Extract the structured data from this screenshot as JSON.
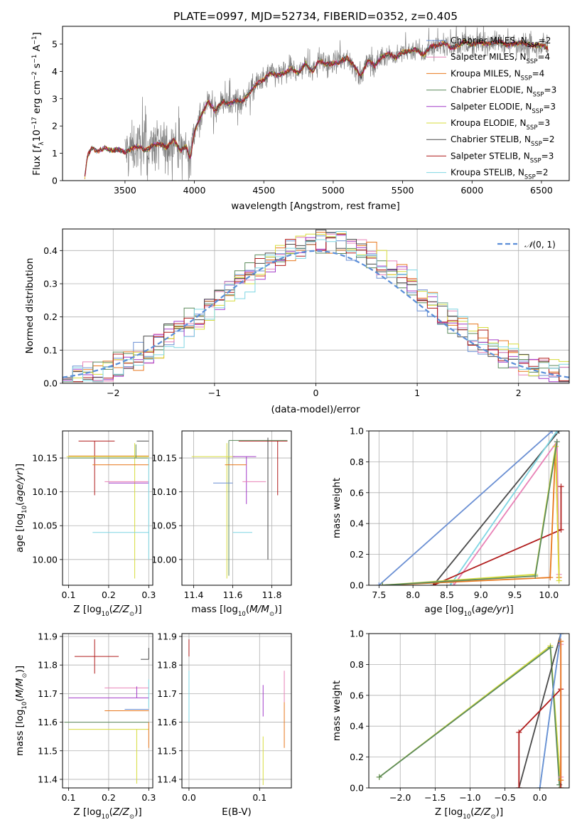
{
  "chart_data": [
    {
      "type": "line",
      "title": "PLATE=0997, MJD=52734, FIBERID=0352, z=0.405",
      "xlabel": "wavelength [Angstrom, rest frame]",
      "ylabel": "Flux [f_λ 10^-17 erg cm^-2 s^-1 A^-1]",
      "xlim": [
        3050,
        6700
      ],
      "ylim": [
        0,
        5.65
      ],
      "xticks": [
        3500,
        4000,
        4500,
        5000,
        5500,
        6000,
        6500
      ],
      "yticks": [
        0,
        1,
        2,
        3,
        4,
        5
      ],
      "legend_position": "top-right",
      "data_x": [
        3210,
        3230,
        3260,
        3300,
        3350,
        3400,
        3450,
        3500,
        3560,
        3600,
        3650,
        3700,
        3750,
        3800,
        3850,
        3900,
        3940,
        3970,
        4000,
        4050,
        4100,
        4150,
        4200,
        4250,
        4300,
        4350,
        4400,
        4450,
        4500,
        4550,
        4600,
        4650,
        4700,
        4750,
        4800,
        4850,
        4900,
        4950,
        5000,
        5050,
        5100,
        5150,
        5200,
        5250,
        5300,
        5350,
        5400,
        5450,
        5500,
        5550,
        5600,
        5650,
        5700,
        5750,
        5800,
        5850,
        5900,
        5950,
        6000,
        6050,
        6100,
        6150,
        6200,
        6250,
        6300,
        6350,
        6400,
        6450,
        6500,
        6550
      ],
      "data_y": [
        0.1,
        0.9,
        1.2,
        1.05,
        1.2,
        1.1,
        1.15,
        1.05,
        1.2,
        1.25,
        1.1,
        1.3,
        1.35,
        1.2,
        1.5,
        1.1,
        1.25,
        0.8,
        1.8,
        2.4,
        2.9,
        2.55,
        2.9,
        2.8,
        2.95,
        2.9,
        3.25,
        3.55,
        3.7,
        3.95,
        3.85,
        3.95,
        4.1,
        3.95,
        4.3,
        4.0,
        4.4,
        4.25,
        4.3,
        4.35,
        4.5,
        4.2,
        3.8,
        4.4,
        4.2,
        4.55,
        4.65,
        4.5,
        4.7,
        4.75,
        4.8,
        4.6,
        4.9,
        4.95,
        5.05,
        4.85,
        4.95,
        5.1,
        4.95,
        5.1,
        5.0,
        5.05,
        5.1,
        4.95,
        5.0,
        5.05,
        5.0,
        4.95,
        4.95,
        4.85
      ],
      "noisy_data_from": 3500,
      "series": [
        {
          "label": "Chabrier MILES, N",
          "sub": "SSP",
          "suffix": "=2",
          "color": "#6a8fd3"
        },
        {
          "label": "Salpeter MILES, N",
          "sub": "SSP",
          "suffix": "=4",
          "color": "#e882b7"
        },
        {
          "label": "Kroupa MILES, N",
          "sub": "SSP",
          "suffix": "=4",
          "color": "#e8781e"
        },
        {
          "label": "Chabrier ELODIE, N",
          "sub": "SSP",
          "suffix": "=3",
          "color": "#5c8a5c"
        },
        {
          "label": "Salpeter ELODIE, N",
          "sub": "SSP",
          "suffix": "=3",
          "color": "#a23ac8"
        },
        {
          "label": "Kroupa ELODIE, N",
          "sub": "SSP",
          "suffix": "=3",
          "color": "#d7dc3c"
        },
        {
          "label": "Chabrier STELIB, N",
          "sub": "SSP",
          "suffix": "=2",
          "color": "#4a4a4a"
        },
        {
          "label": "Salpeter STELIB, N",
          "sub": "SSP",
          "suffix": "=3",
          "color": "#b01c1c"
        },
        {
          "label": "Kroupa STELIB, N",
          "sub": "SSP",
          "suffix": "=2",
          "color": "#7fd6e3"
        }
      ]
    },
    {
      "type": "line",
      "xlabel": "(data-model)/error",
      "ylabel": "Normed distribution",
      "xlim": [
        -2.5,
        2.5
      ],
      "ylim": [
        0,
        0.465
      ],
      "xticks": [
        -2,
        -1,
        0,
        1,
        2
      ],
      "yticks": [
        0.0,
        0.1,
        0.2,
        0.3,
        0.4
      ],
      "grid": true,
      "gaussian_label": "N(0,1)",
      "gaussian_color": "#5b8ed8",
      "bin_width": 0.1
    },
    {
      "type": "scatter",
      "xlabel": "Z [log10(Z/Z⊙)]",
      "ylabel": "age  [log10(age/yr)]",
      "xlim": [
        0.085,
        0.31
      ],
      "ylim": [
        9.962,
        10.19
      ],
      "xticks": [
        0.1,
        0.2,
        0.3
      ],
      "yticks": [
        10.0,
        10.05,
        10.1,
        10.15
      ],
      "grid": true,
      "points": [
        {
          "c": 7,
          "x": 0.165,
          "y": 10.175,
          "xe": [
            0.04,
            0.05
          ],
          "ye": [
            0.08,
            0.0
          ]
        },
        {
          "c": 6,
          "x": 0.29,
          "y": 10.175,
          "xe": [
            0.02,
            0.01
          ],
          "ye": [
            0.0,
            0.0
          ]
        },
        {
          "c": 2,
          "x": 0.1,
          "y": 10.153,
          "xe": [
            0.0,
            0.2
          ],
          "ye": [
            0.0,
            0.0
          ]
        },
        {
          "c": 5,
          "x": 0.265,
          "y": 10.152,
          "xe": [
            0.17,
            0.035
          ],
          "ye": [
            0.18,
            0.02
          ]
        },
        {
          "c": 3,
          "x": 0.268,
          "y": 10.15,
          "xe": [
            0.17,
            0.03
          ],
          "ye": [
            0.0,
            0.02
          ]
        },
        {
          "c": 2,
          "x": 0.2,
          "y": 10.14,
          "xe": [
            0.04,
            0.1
          ],
          "ye": [
            0.0,
            0.0
          ]
        },
        {
          "c": 1,
          "x": 0.26,
          "y": 10.115,
          "xe": [
            0.07,
            0.04
          ],
          "ye": [
            0.0,
            0.0
          ]
        },
        {
          "c": 4,
          "x": 0.28,
          "y": 10.113,
          "xe": [
            0.08,
            0.02
          ],
          "ye": [
            0.0,
            0.0
          ]
        },
        {
          "c": 8,
          "x": 0.23,
          "y": 10.04,
          "xe": [
            0.07,
            0.07
          ],
          "ye": [
            0.0,
            0.0
          ]
        },
        {
          "c": 8,
          "x": 0.3,
          "y": 10.1,
          "xe": [
            0.0,
            0.0
          ],
          "ye": [
            0.1,
            0.05
          ]
        }
      ]
    },
    {
      "type": "scatter",
      "xlabel": "mass [log10(M/M⊙)]",
      "ylabel": "",
      "xlim": [
        11.34,
        11.9
      ],
      "ylim": [
        9.962,
        10.19
      ],
      "xticks": [
        11.4,
        11.6,
        11.8
      ],
      "yticks": [
        10.0,
        10.05,
        10.1,
        10.15
      ],
      "grid": true,
      "points": [
        {
          "c": 7,
          "x": 11.83,
          "y": 10.175,
          "xe": [
            0.2,
            0.05
          ],
          "ye": [
            0.08,
            0.0
          ]
        },
        {
          "c": 3,
          "x": 11.58,
          "y": 10.176,
          "xe": [
            0.0,
            0.3
          ],
          "ye": [
            0.2,
            0.0
          ]
        },
        {
          "c": 5,
          "x": 11.57,
          "y": 10.152,
          "xe": [
            0.18,
            0.04
          ],
          "ye": [
            0.18,
            0.02
          ]
        },
        {
          "c": 4,
          "x": 11.67,
          "y": 10.152,
          "xe": [
            0.07,
            0.05
          ],
          "ye": [
            0.07,
            0.0
          ]
        },
        {
          "c": 2,
          "x": 11.62,
          "y": 10.14,
          "xe": [
            0.06,
            0.05
          ],
          "ye": [
            0.0,
            0.0
          ]
        },
        {
          "c": 1,
          "x": 11.72,
          "y": 10.115,
          "xe": [
            0.07,
            0.05
          ],
          "ye": [
            0.0,
            0.0
          ]
        },
        {
          "c": 0,
          "x": 11.6,
          "y": 10.113,
          "xe": [
            0.1,
            0.0
          ],
          "ye": [
            0.0,
            0.0
          ]
        },
        {
          "c": 8,
          "x": 11.7,
          "y": 10.04,
          "xe": [
            0.1,
            0.0
          ],
          "ye": [
            0.0,
            0.0
          ]
        },
        {
          "c": 6,
          "x": 11.78,
          "y": 10.0,
          "xe": [
            0.0,
            0.0
          ],
          "ye": [
            0.0,
            0.18
          ]
        }
      ]
    },
    {
      "type": "line",
      "xlabel": "age  [log10(age/yr)]",
      "ylabel": "mass weight",
      "xlim": [
        7.35,
        10.3
      ],
      "ylim": [
        0,
        1.0
      ],
      "xticks": [
        7.5,
        8.0,
        8.5,
        9.0,
        9.5,
        10.0
      ],
      "yticks": [
        0.0,
        0.2,
        0.4,
        0.6,
        0.8,
        1.0
      ],
      "grid": true,
      "lines": [
        {
          "c": 0,
          "x": [
            7.5,
            10.05
          ],
          "y": [
            0.0,
            1.0
          ]
        },
        {
          "c": 6,
          "x": [
            8.3,
            10.15
          ],
          "y": [
            0.0,
            1.0
          ]
        },
        {
          "c": 8,
          "x": [
            8.55,
            10.12
          ],
          "y": [
            0.0,
            1.0
          ]
        },
        {
          "c": 1,
          "x": [
            8.6,
            10.12,
            10.15
          ],
          "y": [
            0.0,
            0.93,
            0.07
          ]
        },
        {
          "c": 7,
          "x": [
            8.3,
            10.18,
            10.18
          ],
          "y": [
            0.0,
            0.36,
            0.64
          ]
        },
        {
          "c": 2,
          "x": [
            7.55,
            10.02,
            10.1,
            10.15
          ],
          "y": [
            0.0,
            0.05,
            0.9,
            0.05
          ]
        },
        {
          "c": 5,
          "x": [
            7.55,
            9.8,
            10.1,
            10.15
          ],
          "y": [
            0.0,
            0.07,
            0.9,
            0.03
          ]
        },
        {
          "c": 3,
          "x": [
            7.55,
            9.8,
            10.12
          ],
          "y": [
            0.0,
            0.06,
            0.93
          ]
        }
      ]
    },
    {
      "type": "scatter",
      "xlabel": "Z [log10(Z/Z⊙)]",
      "ylabel": "mass [log10(M/M⊙)]",
      "xlim": [
        0.085,
        0.31
      ],
      "ylim": [
        11.37,
        11.91
      ],
      "xticks": [
        0.1,
        0.2,
        0.3
      ],
      "yticks": [
        11.4,
        11.5,
        11.6,
        11.7,
        11.8,
        11.9
      ],
      "grid": true,
      "points": [
        {
          "c": 7,
          "x": 0.165,
          "y": 11.83,
          "xe": [
            0.05,
            0.06
          ],
          "ye": [
            0.06,
            0.06
          ]
        },
        {
          "c": 6,
          "x": 0.3,
          "y": 11.82,
          "xe": [
            0.02,
            0.0
          ],
          "ye": [
            0.0,
            0.04
          ]
        },
        {
          "c": 1,
          "x": 0.24,
          "y": 11.72,
          "xe": [
            0.05,
            0.06
          ],
          "ye": [
            0.0,
            0.0
          ]
        },
        {
          "c": 4,
          "x": 0.27,
          "y": 11.685,
          "xe": [
            0.17,
            0.03
          ],
          "ye": [
            0.0,
            0.04
          ]
        },
        {
          "c": 0,
          "x": 0.27,
          "y": 11.645,
          "xe": [
            0.03,
            0.03
          ],
          "ye": [
            0.0,
            0.0
          ]
        },
        {
          "c": 2,
          "x": 0.26,
          "y": 11.64,
          "xe": [
            0.07,
            0.04
          ],
          "ye": [
            0.0,
            0.0
          ]
        },
        {
          "c": 3,
          "x": 0.24,
          "y": 11.6,
          "xe": [
            0.15,
            0.06
          ],
          "ye": [
            0.0,
            0.0
          ]
        },
        {
          "c": 5,
          "x": 0.27,
          "y": 11.575,
          "xe": [
            0.17,
            0.03
          ],
          "ye": [
            0.19,
            0.0
          ]
        },
        {
          "c": 2,
          "x": 0.3,
          "y": 11.55,
          "xe": [
            0.0,
            0.0
          ],
          "ye": [
            0.04,
            0.05
          ]
        },
        {
          "c": 8,
          "x": 0.3,
          "y": 11.7,
          "xe": [
            0.0,
            0.0
          ],
          "ye": [
            0.05,
            0.05
          ]
        }
      ]
    },
    {
      "type": "scatter",
      "xlabel": "E(B-V)",
      "ylabel": "",
      "xlim": [
        -0.01,
        0.145
      ],
      "ylim": [
        11.37,
        11.91
      ],
      "xticks": [
        0.0,
        0.1
      ],
      "yticks": [
        11.4,
        11.5,
        11.6,
        11.7,
        11.8,
        11.9
      ],
      "grid": true,
      "points": [
        {
          "c": 7,
          "x": 0.0,
          "y": 11.83,
          "xe": [
            0.0,
            0.0
          ],
          "ye": [
            0.0,
            0.06
          ]
        },
        {
          "c": 8,
          "x": 0.0,
          "y": 11.7,
          "xe": [
            0.0,
            0.0
          ],
          "ye": [
            0.1,
            0.08
          ]
        },
        {
          "c": 4,
          "x": 0.105,
          "y": 11.67,
          "xe": [
            0.0,
            0.0
          ],
          "ye": [
            0.05,
            0.06
          ]
        },
        {
          "c": 5,
          "x": 0.105,
          "y": 11.5,
          "xe": [
            0.0,
            0.0
          ],
          "ye": [
            0.12,
            0.05
          ]
        },
        {
          "c": 1,
          "x": 0.135,
          "y": 11.72,
          "xe": [
            0.0,
            0.0
          ],
          "ye": [
            0.05,
            0.06
          ]
        },
        {
          "c": 2,
          "x": 0.135,
          "y": 11.59,
          "xe": [
            0.0,
            0.0
          ],
          "ye": [
            0.08,
            0.08
          ]
        }
      ]
    },
    {
      "type": "line",
      "xlabel": "Z [log10(Z/Z⊙)]",
      "ylabel": "mass weight",
      "xlim": [
        -2.45,
        0.42
      ],
      "ylim": [
        0,
        1.0
      ],
      "xticks": [
        -2.0,
        -1.5,
        -1.0,
        -0.5,
        0.0
      ],
      "yticks": [
        0.0,
        0.2,
        0.4,
        0.6,
        0.8,
        1.0
      ],
      "grid": true,
      "lines": [
        {
          "c": 5,
          "x": [
            -2.3,
            0.15,
            0.3
          ],
          "y": [
            0.07,
            0.92,
            0.0
          ]
        },
        {
          "c": 3,
          "x": [
            -2.3,
            0.15,
            0.28
          ],
          "y": [
            0.07,
            0.91,
            0.02
          ]
        },
        {
          "c": 6,
          "x": [
            -0.3,
            0.3
          ],
          "y": [
            0.0,
            1.0
          ]
        },
        {
          "c": 7,
          "x": [
            -0.3,
            -0.3,
            0.3,
            0.3
          ],
          "y": [
            0.0,
            0.36,
            0.64,
            0.0
          ]
        },
        {
          "c": 8,
          "x": [
            0.0,
            0.3
          ],
          "y": [
            0.0,
            1.0
          ]
        },
        {
          "c": 0,
          "x": [
            0.0,
            0.3
          ],
          "y": [
            0.0,
            1.0
          ]
        },
        {
          "c": 1,
          "x": [
            0.3,
            0.3
          ],
          "y": [
            0.93,
            0.07
          ]
        },
        {
          "c": 2,
          "x": [
            0.3,
            0.3
          ],
          "y": [
            0.95,
            0.05
          ]
        }
      ]
    }
  ]
}
